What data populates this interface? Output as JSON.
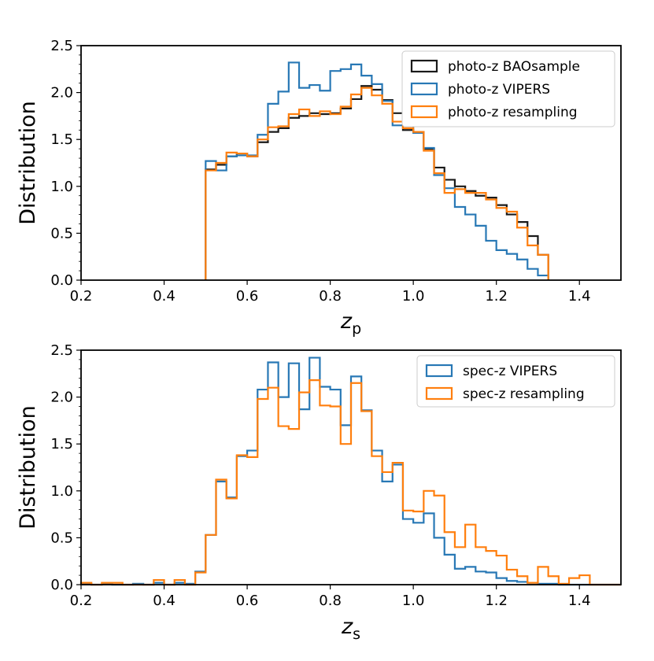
{
  "colors": {
    "black": "#1a1a1a",
    "blue": "#2878b5",
    "orange": "#ff7f0e"
  },
  "chart_data": [
    {
      "type": "histogram-step",
      "title": "",
      "xlabel": "z",
      "xlabel_sub": "p",
      "ylabel": "Distribution",
      "xlim": [
        0.2,
        1.5
      ],
      "ylim": [
        0.0,
        2.5
      ],
      "xticks": [
        0.2,
        0.4,
        0.6,
        0.8,
        1.0,
        1.2,
        1.4
      ],
      "xtick_labels": [
        "0.2",
        "0.4",
        "0.6",
        "0.8",
        "1.0",
        "1.2",
        "1.4"
      ],
      "yticks": [
        0.0,
        0.5,
        1.0,
        1.5,
        2.0,
        2.5
      ],
      "ytick_labels": [
        "0.0",
        "0.5",
        "1.0",
        "1.5",
        "2.0",
        "2.5"
      ],
      "bin_start": 0.5,
      "bin_width": 0.025,
      "legend_position": "top-right",
      "series": [
        {
          "name": "photo-z BAOsample",
          "color_key": "black",
          "values": [
            1.18,
            1.23,
            1.32,
            1.35,
            1.32,
            1.47,
            1.58,
            1.62,
            1.73,
            1.75,
            1.78,
            1.77,
            1.78,
            1.83,
            1.93,
            2.07,
            2.03,
            1.92,
            1.78,
            1.6,
            1.58,
            1.4,
            1.2,
            1.07,
            1.0,
            0.95,
            0.9,
            0.88,
            0.8,
            0.7,
            0.62,
            0.47,
            0.27
          ]
        },
        {
          "name": "photo-z VIPERS",
          "color_key": "blue",
          "values": [
            1.27,
            1.17,
            1.32,
            1.33,
            1.33,
            1.55,
            1.88,
            2.01,
            2.32,
            2.05,
            2.08,
            2.02,
            2.23,
            2.25,
            2.3,
            2.18,
            2.09,
            1.91,
            1.65,
            1.68,
            1.57,
            1.41,
            1.12,
            0.98,
            0.78,
            0.7,
            0.58,
            0.42,
            0.32,
            0.28,
            0.22,
            0.12,
            0.05
          ]
        },
        {
          "name": "photo-z resampling",
          "color_key": "orange",
          "values": [
            1.17,
            1.25,
            1.36,
            1.35,
            1.32,
            1.5,
            1.63,
            1.64,
            1.77,
            1.82,
            1.75,
            1.8,
            1.77,
            1.85,
            1.98,
            2.05,
            1.97,
            1.88,
            1.69,
            1.62,
            1.58,
            1.38,
            1.14,
            0.93,
            0.97,
            0.93,
            0.93,
            0.86,
            0.77,
            0.73,
            0.56,
            0.37,
            0.27
          ]
        }
      ]
    },
    {
      "type": "histogram-step",
      "title": "",
      "xlabel": "z",
      "xlabel_sub": "s",
      "ylabel": "Distribution",
      "xlim": [
        0.2,
        1.5
      ],
      "ylim": [
        0.0,
        2.5
      ],
      "xticks": [
        0.2,
        0.4,
        0.6,
        0.8,
        1.0,
        1.2,
        1.4
      ],
      "xtick_labels": [
        "0.2",
        "0.4",
        "0.6",
        "0.8",
        "1.0",
        "1.2",
        "1.4"
      ],
      "yticks": [
        0.0,
        0.5,
        1.0,
        1.5,
        2.0,
        2.5
      ],
      "ytick_labels": [
        "0.0",
        "0.5",
        "1.0",
        "1.5",
        "2.0",
        "2.5"
      ],
      "bin_start": 0.2,
      "bin_width": 0.025,
      "legend_position": "top-right",
      "series": [
        {
          "name": "spec-z VIPERS",
          "color_key": "blue",
          "values": [
            0.01,
            0.0,
            0.01,
            0.0,
            0.0,
            0.01,
            0.0,
            0.02,
            0.0,
            0.02,
            0.01,
            0.14,
            0.53,
            1.1,
            0.93,
            1.37,
            1.43,
            2.08,
            2.37,
            2.0,
            2.36,
            1.87,
            2.42,
            2.11,
            2.08,
            1.7,
            2.22,
            1.86,
            1.43,
            1.1,
            1.28,
            0.7,
            0.66,
            0.76,
            0.5,
            0.32,
            0.17,
            0.19,
            0.14,
            0.13,
            0.07,
            0.04,
            0.03,
            0.02,
            0.01,
            0.01,
            0.0,
            0.0,
            0.0,
            0.0,
            0.0,
            0.0
          ]
        },
        {
          "name": "spec-z resampling",
          "color_key": "orange",
          "values": [
            0.02,
            0.0,
            0.02,
            0.02,
            0.0,
            0.0,
            0.0,
            0.05,
            0.0,
            0.05,
            0.0,
            0.13,
            0.53,
            1.12,
            0.92,
            1.38,
            1.36,
            1.98,
            2.1,
            1.69,
            1.66,
            2.05,
            2.18,
            1.91,
            1.9,
            1.5,
            2.15,
            1.85,
            1.37,
            1.2,
            1.3,
            0.79,
            0.78,
            1.0,
            0.95,
            0.56,
            0.4,
            0.64,
            0.4,
            0.36,
            0.31,
            0.16,
            0.09,
            0.02,
            0.19,
            0.09,
            0.01,
            0.07,
            0.1,
            0.0,
            0.0,
            0.0
          ]
        }
      ]
    }
  ]
}
